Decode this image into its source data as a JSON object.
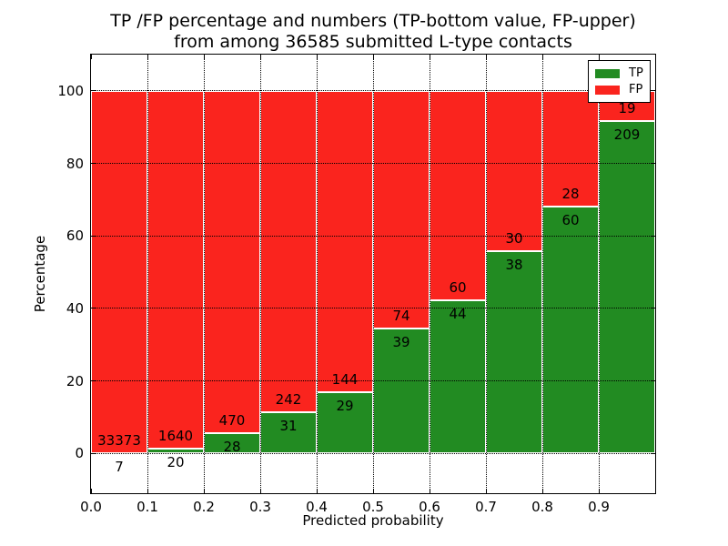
{
  "figure": {
    "title_line1": "TP /FP percentage and numbers (TP-bottom value, FP-upper)",
    "title_line2": "from among 36585 submitted L-type contacts"
  },
  "chart_data": {
    "type": "bar",
    "stacked": true,
    "normalization": "each bin stacked to 100%",
    "title": "TP /FP percentage and numbers (TP-bottom value, FP-upper)\nfrom among 36585 submitted L-type contacts",
    "xlabel": "Predicted probability",
    "ylabel": "Percentage",
    "xlim": [
      0.0,
      1.0
    ],
    "ylim": [
      -11,
      110
    ],
    "bin_width": 0.1,
    "bin_starts": [
      0.0,
      0.1,
      0.2,
      0.3,
      0.4,
      0.5,
      0.6,
      0.7,
      0.8,
      0.9
    ],
    "xticks": [
      "0.0",
      "0.1",
      "0.2",
      "0.3",
      "0.4",
      "0.5",
      "0.6",
      "0.7",
      "0.8",
      "0.9"
    ],
    "yticks": [
      0,
      20,
      40,
      60,
      80,
      100
    ],
    "grid": "dotted black, both axes, drawn over bars",
    "bar_edge_color": "#ffffff",
    "series": [
      {
        "name": "TP",
        "color": "#228b22",
        "counts": [
          7,
          20,
          28,
          31,
          29,
          39,
          44,
          38,
          60,
          209
        ],
        "percent": [
          0.02,
          1.2,
          5.62,
          11.36,
          16.76,
          34.51,
          42.31,
          55.88,
          68.18,
          91.67
        ]
      },
      {
        "name": "FP",
        "color": "#fa241e",
        "counts": [
          33373,
          1640,
          470,
          242,
          144,
          74,
          60,
          30,
          28,
          19
        ],
        "percent": [
          99.98,
          98.8,
          94.38,
          88.64,
          83.24,
          65.49,
          57.69,
          44.12,
          31.82,
          8.33
        ]
      }
    ],
    "legend": {
      "position": "upper right",
      "entries": [
        {
          "label": "TP",
          "color": "#228b22"
        },
        {
          "label": "FP",
          "color": "#fa241e"
        }
      ]
    }
  }
}
